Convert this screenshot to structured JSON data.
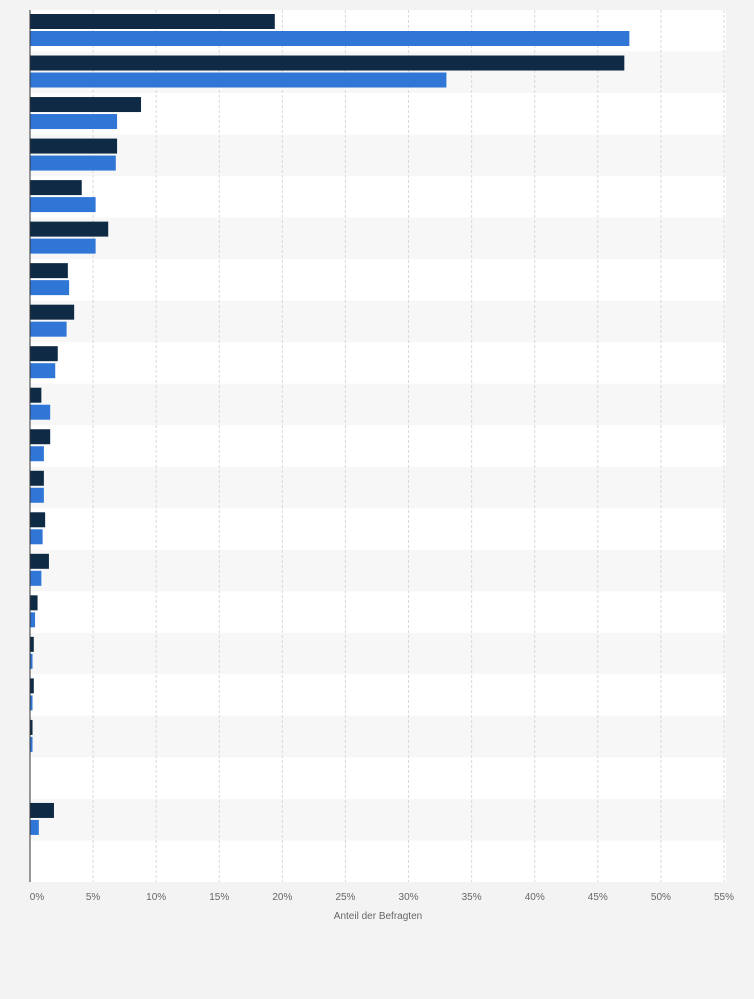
{
  "chart_data": {
    "type": "bar",
    "orientation": "horizontal",
    "title": "",
    "xlabel": "Anteil der Befragten",
    "ylabel": "",
    "xlim": [
      0,
      55
    ],
    "x_ticks": [
      "0%",
      "5%",
      "10%",
      "15%",
      "20%",
      "25%",
      "30%",
      "35%",
      "40%",
      "45%",
      "50%",
      "55%"
    ],
    "grid": true,
    "categories": [
      "",
      "",
      "",
      "",
      "",
      "",
      "",
      "",
      "",
      "",
      "",
      "",
      "",
      "",
      "",
      "",
      "",
      "",
      "",
      "",
      ""
    ],
    "series": [
      {
        "color": "#0f2a45",
        "values": [
          19.4,
          47.1,
          8.8,
          6.9,
          4.1,
          6.2,
          3.0,
          3.5,
          2.2,
          0.9,
          1.6,
          1.1,
          1.2,
          1.5,
          0.6,
          0.3,
          0.3,
          0.2,
          0,
          1.9,
          0
        ]
      },
      {
        "color": "#2f76d6",
        "values": [
          47.5,
          33.0,
          6.9,
          6.8,
          5.2,
          5.2,
          3.1,
          2.9,
          2.0,
          1.6,
          1.1,
          1.1,
          1.0,
          0.9,
          0.4,
          0.2,
          0.2,
          0.2,
          0,
          0.7,
          0
        ]
      }
    ]
  }
}
